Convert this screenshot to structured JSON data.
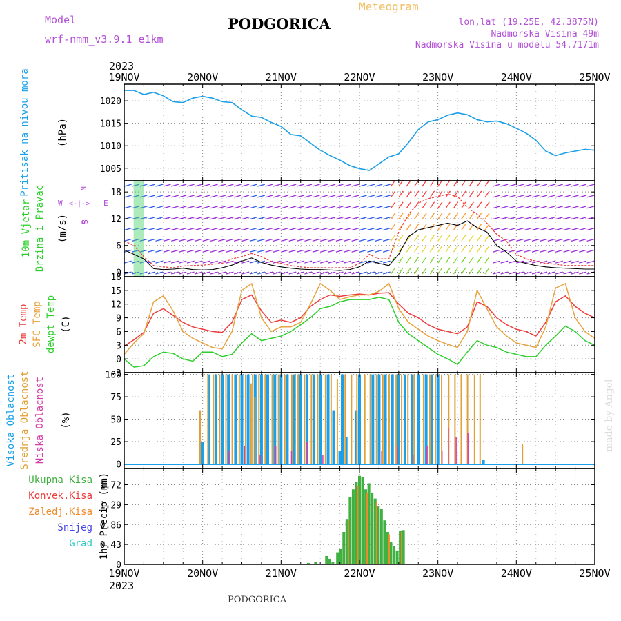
{
  "header": {
    "model_label": "Model",
    "model_value": "wrf-nmm_v3.9.1 e1km",
    "station": "PODGORICA",
    "meteogram": "Meteogram",
    "lonlat": "lon,lat (19.25E, 42.3875N)",
    "elevation": "Nadmorska Visina 49m",
    "model_elevation": "Nadmorska Visina u modelu 54.7171m"
  },
  "footer": {
    "station": "PODGORICA",
    "watermark": "made by Angel"
  },
  "colors": {
    "pressure": "#1a9fe8",
    "temp2m": "#ee3c3c",
    "sfcTemp": "#e8a33c",
    "dewpt": "#2ccf2c",
    "highCloud": "#1a9fe8",
    "midCloud": "#e0a035",
    "lowCloud": "#d43fa8",
    "totalRain": "#40b040",
    "convRain": "#ee3c3c",
    "frozenRain": "#f08a2c",
    "snow": "#4646e6",
    "hail": "#2cc8c8",
    "purple": "#b24fd6"
  },
  "chart_data": [
    {
      "type": "line",
      "id": "pressure",
      "ylabel_colored": "Pritisak na nivou mora",
      "unit": "(hPa)",
      "yticks": [
        1005,
        1010,
        1015,
        1020
      ],
      "ylim": [
        1002.2,
        1023.7
      ],
      "x_days": [
        0,
        0.125,
        0.25,
        0.375,
        0.5,
        0.625,
        0.75,
        0.875,
        1.0,
        1.125,
        1.25,
        1.375,
        1.5,
        1.625,
        1.75,
        1.875,
        2.0,
        2.125,
        2.25,
        2.375,
        2.5,
        2.625,
        2.75,
        2.875,
        3.0,
        3.125,
        3.25,
        3.375,
        3.5,
        3.625,
        3.75,
        3.875,
        4.0,
        4.125,
        4.25,
        4.375,
        4.5,
        4.625,
        4.75,
        4.875,
        5.0,
        5.125,
        5.25,
        5.375,
        5.5,
        5.625,
        5.75,
        5.875,
        6.0
      ],
      "values": [
        1022.3,
        1022.3,
        1021.4,
        1021.9,
        1021.1,
        1019.8,
        1019.6,
        1020.6,
        1021.0,
        1020.6,
        1019.8,
        1019.6,
        1018.0,
        1016.6,
        1016.3,
        1015.2,
        1014.3,
        1012.5,
        1012.2,
        1010.6,
        1009.0,
        1007.8,
        1006.8,
        1005.6,
        1004.9,
        1004.5,
        1006.0,
        1007.5,
        1008.2,
        1010.7,
        1013.6,
        1015.3,
        1015.8,
        1016.8,
        1017.3,
        1016.9,
        1015.8,
        1015.3,
        1015.5,
        1014.9,
        1013.9,
        1012.8,
        1011.2,
        1008.8,
        1007.8,
        1008.4,
        1008.8,
        1009.2,
        1009.0
      ]
    },
    {
      "type": "line",
      "id": "wind",
      "ylabel_colored_1": "10m Vjetar",
      "ylabel_colored_2": "Brzina i Pravac",
      "unit": "(m/s)",
      "legend_rose": {
        "n": "N",
        "s": "S",
        "w": "W",
        "e": "E",
        "arrow": "<-|->",
        "alpha": "α"
      },
      "yticks": [
        0,
        6,
        12,
        18
      ],
      "ylim": [
        -1,
        20.5
      ],
      "x_days": [
        0,
        0.125,
        0.25,
        0.375,
        0.5,
        0.625,
        0.75,
        0.875,
        1.0,
        1.125,
        1.25,
        1.375,
        1.5,
        1.625,
        1.75,
        1.875,
        2.0,
        2.125,
        2.25,
        2.375,
        2.5,
        2.625,
        2.75,
        2.875,
        3.0,
        3.125,
        3.25,
        3.375,
        3.5,
        3.625,
        3.75,
        3.875,
        4.0,
        4.125,
        4.25,
        4.375,
        4.5,
        4.625,
        4.75,
        4.875,
        5.0,
        5.125,
        5.25,
        5.375,
        5.5,
        5.625,
        5.75,
        5.875,
        6.0
      ],
      "speed": [
        5.0,
        4.0,
        3.0,
        0.8,
        0.6,
        0.7,
        0.9,
        0.6,
        0.5,
        0.6,
        1.0,
        1.6,
        2.5,
        3.2,
        2.2,
        1.6,
        1.2,
        0.9,
        0.7,
        0.6,
        0.6,
        0.5,
        0.4,
        0.6,
        1.2,
        2.5,
        2.0,
        1.5,
        4.0,
        8.0,
        9.5,
        10.0,
        10.5,
        11.0,
        10.5,
        11.5,
        10.0,
        9.0,
        6.0,
        4.5,
        2.5,
        2.0,
        1.5,
        1.2,
        1.0,
        0.9,
        0.8,
        0.7,
        0.7
      ],
      "gust": [
        7.0,
        6.0,
        3.5,
        1.5,
        1.2,
        1.0,
        1.4,
        1.5,
        1.6,
        1.8,
        2.0,
        3.0,
        3.5,
        4.2,
        3.5,
        2.4,
        2.0,
        1.5,
        1.2,
        1.0,
        1.0,
        1.0,
        1.0,
        1.0,
        2.0,
        4.0,
        3.0,
        3.0,
        9.0,
        13.0,
        15.5,
        16.5,
        17.0,
        17.5,
        17.0,
        14.5,
        13.0,
        11.0,
        8.5,
        7.0,
        4.0,
        3.0,
        2.5,
        2.0,
        1.8,
        1.5,
        1.5,
        1.5,
        1.5
      ]
    },
    {
      "type": "line",
      "id": "temperature",
      "ylabel_colored_1": "2m Temp",
      "ylabel_colored_2": "SFC Temp",
      "ylabel_colored_3": "dewpt Temp",
      "unit": "(C)",
      "yticks": [
        -3,
        0,
        3,
        6,
        9,
        12,
        15,
        18
      ],
      "ylim": [
        -3,
        18
      ],
      "x_days": [
        0,
        0.125,
        0.25,
        0.375,
        0.5,
        0.625,
        0.75,
        0.875,
        1.0,
        1.125,
        1.25,
        1.375,
        1.5,
        1.625,
        1.75,
        1.875,
        2.0,
        2.125,
        2.25,
        2.375,
        2.5,
        2.625,
        2.75,
        2.875,
        3.0,
        3.125,
        3.25,
        3.375,
        3.5,
        3.625,
        3.75,
        3.875,
        4.0,
        4.125,
        4.25,
        4.375,
        4.5,
        4.625,
        4.75,
        4.875,
        5.0,
        5.125,
        5.25,
        5.375,
        5.5,
        5.625,
        5.75,
        5.875,
        6.0
      ],
      "series": [
        {
          "name": "2m Temp",
          "values": [
            2.8,
            4.2,
            5.8,
            10.0,
            11.0,
            9.5,
            8.0,
            7.0,
            6.5,
            6.0,
            5.8,
            8.0,
            13.0,
            14.0,
            10.5,
            8.0,
            8.5,
            8.0,
            9.0,
            11.5,
            13.0,
            14.0,
            13.7,
            14.0,
            14.2,
            14.0,
            14.4,
            14.5,
            12.0,
            10.0,
            9.0,
            7.5,
            6.5,
            6.0,
            5.5,
            7.0,
            12.5,
            11.5,
            9.0,
            7.5,
            6.5,
            6.0,
            5.0,
            8.0,
            12.5,
            13.8,
            11.5,
            10.0,
            9.0
          ]
        },
        {
          "name": "SFC Temp",
          "values": [
            1.0,
            3.5,
            5.5,
            12.5,
            13.8,
            10.5,
            6.0,
            4.5,
            3.5,
            2.5,
            2.2,
            6.0,
            15.0,
            16.5,
            9.0,
            6.0,
            7.0,
            7.0,
            8.0,
            12.0,
            16.5,
            15.0,
            13.0,
            13.6,
            14.0,
            14.0,
            14.8,
            16.5,
            11.0,
            8.0,
            6.5,
            5.0,
            4.0,
            3.2,
            2.5,
            6.0,
            15.0,
            11.0,
            7.0,
            5.0,
            3.5,
            3.0,
            2.5,
            7.0,
            15.5,
            16.5,
            9.0,
            6.0,
            4.5
          ]
        },
        {
          "name": "dewpt Temp",
          "values": [
            0.0,
            -1.8,
            -1.5,
            0.5,
            1.5,
            1.2,
            0.0,
            -0.5,
            1.5,
            1.5,
            0.5,
            1.0,
            3.5,
            5.5,
            4.0,
            4.5,
            5.0,
            6.0,
            7.5,
            9.0,
            11.0,
            11.5,
            12.5,
            13.0,
            13.0,
            13.0,
            13.5,
            13.0,
            8.0,
            5.5,
            4.0,
            2.5,
            1.0,
            0.0,
            -1.2,
            1.5,
            4.0,
            3.0,
            2.5,
            1.5,
            1.0,
            0.5,
            0.5,
            3.0,
            5.0,
            7.2,
            6.0,
            4.0,
            3.0
          ]
        }
      ]
    },
    {
      "type": "bar",
      "id": "clouds",
      "ylabel_colored_1": "Visoka Oblacnost",
      "ylabel_colored_2": "Srednja Oblacnost",
      "ylabel_colored_3": "Niska Oblacnost",
      "unit": "(%)",
      "yticks": [
        0,
        25,
        50,
        75,
        100
      ],
      "ylim": [
        -5,
        102
      ],
      "high": [
        [
          1.0,
          25
        ],
        [
          1.08,
          100
        ],
        [
          1.17,
          100
        ],
        [
          1.25,
          100
        ],
        [
          1.33,
          100
        ],
        [
          1.42,
          100
        ],
        [
          1.5,
          100
        ],
        [
          1.58,
          100
        ],
        [
          1.67,
          100
        ],
        [
          1.75,
          100
        ],
        [
          1.83,
          100
        ],
        [
          1.92,
          100
        ],
        [
          2.0,
          100
        ],
        [
          2.08,
          100
        ],
        [
          2.17,
          100
        ],
        [
          2.25,
          100
        ],
        [
          2.33,
          100
        ],
        [
          2.42,
          100
        ],
        [
          2.5,
          100
        ],
        [
          2.6,
          100
        ],
        [
          2.67,
          60
        ],
        [
          2.75,
          15
        ],
        [
          2.78,
          100
        ],
        [
          2.83,
          30
        ],
        [
          2.96,
          60
        ],
        [
          3.0,
          100
        ],
        [
          3.17,
          100
        ],
        [
          3.25,
          100
        ],
        [
          3.33,
          100
        ],
        [
          3.42,
          100
        ],
        [
          3.5,
          100
        ],
        [
          3.58,
          100
        ],
        [
          3.67,
          100
        ],
        [
          3.75,
          100
        ],
        [
          3.85,
          100
        ],
        [
          3.92,
          100
        ],
        [
          4.0,
          100
        ],
        [
          4.58,
          5
        ]
      ],
      "mid": [
        [
          1.6,
          90
        ],
        [
          1.65,
          75
        ],
        [
          0.95,
          60
        ],
        [
          1.05,
          100
        ],
        [
          1.12,
          100
        ],
        [
          1.2,
          100
        ],
        [
          1.28,
          100
        ],
        [
          1.36,
          100
        ],
        [
          1.45,
          100
        ],
        [
          1.53,
          100
        ],
        [
          1.62,
          100
        ],
        [
          1.7,
          100
        ],
        [
          1.78,
          100
        ],
        [
          1.87,
          100
        ],
        [
          1.95,
          100
        ],
        [
          2.03,
          100
        ],
        [
          2.12,
          100
        ],
        [
          2.2,
          100
        ],
        [
          2.28,
          100
        ],
        [
          2.37,
          100
        ],
        [
          2.45,
          100
        ],
        [
          2.55,
          100
        ],
        [
          2.62,
          100
        ],
        [
          2.7,
          95
        ],
        [
          2.8,
          100
        ],
        [
          2.88,
          100
        ],
        [
          2.95,
          100
        ],
        [
          3.05,
          100
        ],
        [
          3.12,
          100
        ],
        [
          3.2,
          100
        ],
        [
          3.28,
          100
        ],
        [
          3.36,
          100
        ],
        [
          3.45,
          100
        ],
        [
          3.52,
          100
        ],
        [
          3.6,
          100
        ],
        [
          3.68,
          100
        ],
        [
          3.8,
          100
        ],
        [
          3.88,
          100
        ],
        [
          3.95,
          100
        ],
        [
          4.03,
          100
        ],
        [
          4.12,
          100
        ],
        [
          4.2,
          100
        ],
        [
          4.28,
          100
        ],
        [
          4.36,
          100
        ],
        [
          4.45,
          100
        ],
        [
          4.52,
          100
        ],
        [
          5.06,
          22
        ]
      ],
      "low": [
        [
          1.3,
          15
        ],
        [
          1.5,
          20
        ],
        [
          1.7,
          10
        ],
        [
          1.9,
          20
        ],
        [
          2.1,
          15
        ],
        [
          2.3,
          25
        ],
        [
          2.5,
          10
        ],
        [
          3.25,
          15
        ],
        [
          3.45,
          20
        ],
        [
          3.65,
          10
        ],
        [
          3.83,
          20
        ],
        [
          4.02,
          15
        ],
        [
          4.1,
          40
        ],
        [
          4.2,
          30
        ],
        [
          4.35,
          35
        ]
      ]
    },
    {
      "type": "bar",
      "id": "precip",
      "ylabel": "1hr Precip (mm)",
      "legend": [
        "Ukupna Kisa",
        "Konvek.Kisa",
        "Zaledj.Kisa",
        "Snijeg",
        "Grad"
      ],
      "yticks": [
        0,
        0.43,
        0.86,
        1.29,
        1.72
      ],
      "ylim": [
        0,
        2.07
      ],
      "total": [
        [
          2.35,
          0.03
        ],
        [
          2.44,
          0.06
        ],
        [
          2.58,
          0.18
        ],
        [
          2.62,
          0.12
        ],
        [
          2.66,
          0.05
        ],
        [
          2.72,
          0.26
        ],
        [
          2.76,
          0.34
        ],
        [
          2.8,
          0.7
        ],
        [
          2.84,
          0.98
        ],
        [
          2.88,
          1.45
        ],
        [
          2.92,
          1.62
        ],
        [
          2.96,
          1.78
        ],
        [
          3.0,
          1.91
        ],
        [
          3.04,
          1.88
        ],
        [
          3.08,
          1.62
        ],
        [
          3.12,
          1.75
        ],
        [
          3.16,
          1.55
        ],
        [
          3.2,
          1.42
        ],
        [
          3.24,
          1.25
        ],
        [
          3.28,
          1.2
        ],
        [
          3.32,
          0.95
        ],
        [
          3.36,
          0.7
        ],
        [
          3.4,
          0.48
        ],
        [
          3.44,
          0.4
        ],
        [
          3.48,
          0.3
        ],
        [
          3.52,
          0.72
        ],
        [
          3.56,
          0.74
        ]
      ],
      "frozen": [
        [
          2.84,
          0.95
        ],
        [
          2.96,
          1.7
        ],
        [
          3.08,
          1.55
        ],
        [
          3.2,
          1.35
        ],
        [
          3.36,
          0.65
        ],
        [
          3.52,
          0.7
        ]
      ]
    }
  ],
  "x_axis": {
    "year": "2023",
    "ticks": [
      "19NOV",
      "20NOV",
      "21NOV",
      "22NOV",
      "23NOV",
      "24NOV",
      "25NOV"
    ]
  }
}
